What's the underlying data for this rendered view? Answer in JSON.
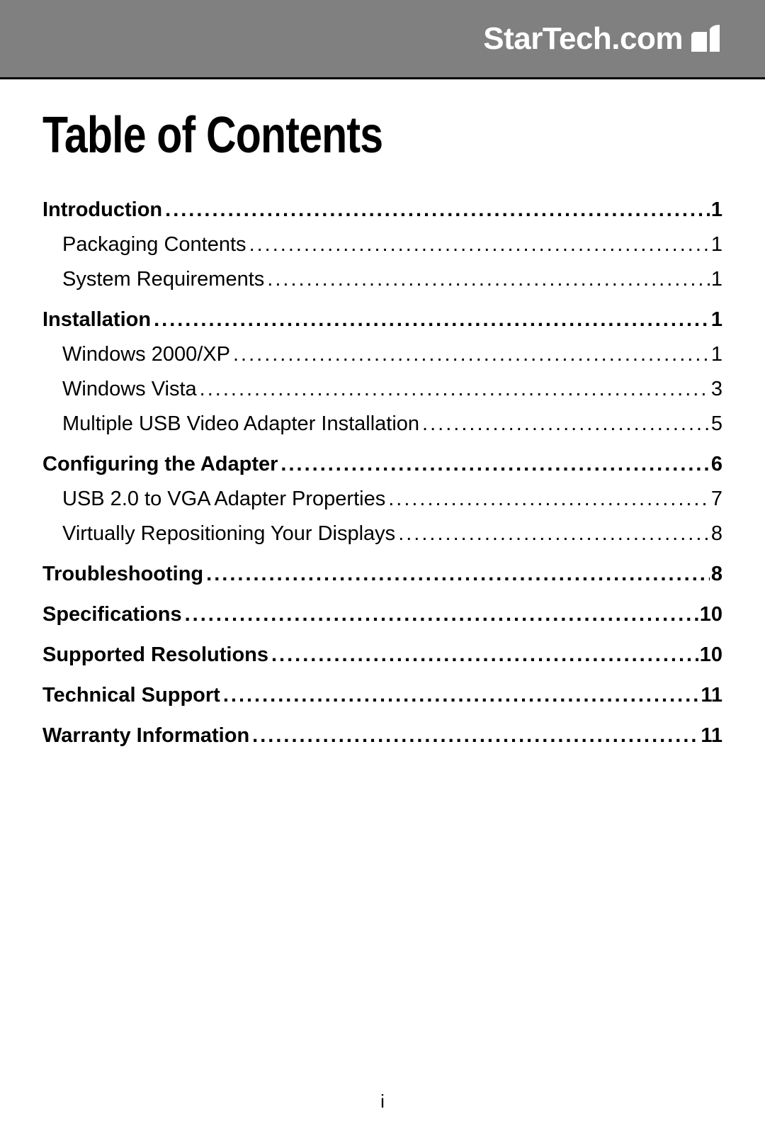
{
  "brand": {
    "name": "StarTech.com"
  },
  "title": "Table of Contents",
  "toc": [
    {
      "type": "section",
      "label": "Introduction",
      "page": "1"
    },
    {
      "type": "sub",
      "label": "Packaging Contents",
      "page": "1"
    },
    {
      "type": "sub",
      "label": "System Requirements",
      "page": "1"
    },
    {
      "type": "section",
      "label": "Installation",
      "page": "1"
    },
    {
      "type": "sub",
      "label": "Windows 2000/XP",
      "page": "1"
    },
    {
      "type": "sub",
      "label": "Windows Vista",
      "page": "3"
    },
    {
      "type": "sub",
      "label": "Multiple USB Video Adapter Installation",
      "page": "5"
    },
    {
      "type": "section",
      "label": "Configuring the Adapter",
      "page": "6"
    },
    {
      "type": "sub",
      "label": "USB 2.0 to VGA Adapter Properties",
      "page": "7"
    },
    {
      "type": "sub",
      "label": "Virtually Repositioning Your Displays",
      "page": "8"
    },
    {
      "type": "section",
      "label": "Troubleshooting",
      "page": "8"
    },
    {
      "type": "section",
      "label": "Specifications",
      "page": "10"
    },
    {
      "type": "section",
      "label": "Supported Resolutions",
      "page": "10"
    },
    {
      "type": "section",
      "label": "Technical Support",
      "page": "11"
    },
    {
      "type": "section",
      "label": "Warranty Information",
      "page": "11"
    }
  ],
  "page_label": "i",
  "colors": {
    "header_bg": "#808080",
    "header_text": "#ffffff",
    "body_bg": "#ffffff",
    "text": "#000000",
    "rule": "#000000"
  },
  "typography": {
    "title_fontsize": 72,
    "section_fontsize": 29,
    "sub_fontsize": 29,
    "brand_fontsize": 44
  }
}
